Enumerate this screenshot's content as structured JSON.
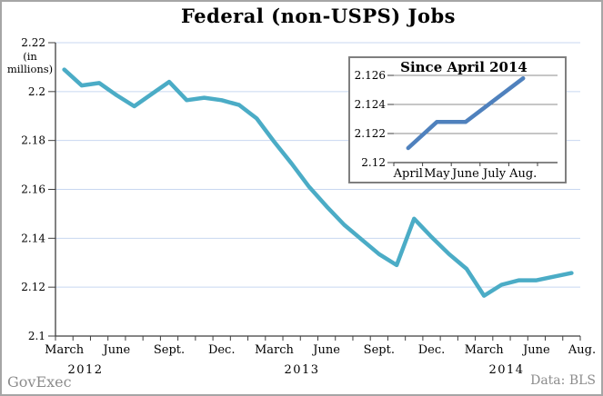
{
  "title": "Federal (non-USPS) Jobs",
  "credits": {
    "left": "GovExec",
    "right": "Data: BLS"
  },
  "colors": {
    "main_line": "#4BACC6",
    "inset_line": "#4F81BD",
    "main_gridline": "#C8D7F0",
    "inset_gridline": "#8C8C8C",
    "axis": "#3F3F3F",
    "muted_text": "#8C8C8C",
    "frame_border": "#A6A6A6",
    "inset_border": "#7F7F7F"
  },
  "chart_data": [
    {
      "type": "line",
      "title": "Federal (non-USPS) Jobs",
      "ylabel": "(in millions)",
      "xlabel": "",
      "ylim": [
        2.1,
        2.22
      ],
      "ytick_step": 0.02,
      "grid": true,
      "line_color": "#4BACC6",
      "x": [
        "Mar 2012",
        "Apr 2012",
        "May 2012",
        "Jun 2012",
        "Jul 2012",
        "Aug 2012",
        "Sep 2012",
        "Oct 2012",
        "Nov 2012",
        "Dec 2012",
        "Jan 2013",
        "Feb 2013",
        "Mar 2013",
        "Apr 2013",
        "May 2013",
        "Jun 2013",
        "Jul 2013",
        "Aug 2013",
        "Sep 2013",
        "Oct 2013",
        "Nov 2013",
        "Dec 2013",
        "Jan 2014",
        "Feb 2014",
        "Mar 2014",
        "Apr 2014",
        "May 2014",
        "Jun 2014",
        "Jul 2014",
        "Aug 2014"
      ],
      "values": [
        2.209,
        2.2025,
        2.2035,
        2.1985,
        2.194,
        2.199,
        2.204,
        2.1965,
        2.1975,
        2.1965,
        2.1945,
        2.189,
        2.1795,
        2.1705,
        2.161,
        2.153,
        2.1455,
        2.1395,
        2.1335,
        2.129,
        2.148,
        2.1405,
        2.1335,
        2.1275,
        2.1165,
        2.121,
        2.1228,
        2.1228,
        2.1243,
        2.1258
      ],
      "x_tick_labels": [
        {
          "m": 0,
          "t": "March"
        },
        {
          "m": 3,
          "t": "June"
        },
        {
          "m": 6,
          "t": "Sept."
        },
        {
          "m": 9,
          "t": "Dec."
        },
        {
          "m": 12,
          "t": "March"
        },
        {
          "m": 15,
          "t": "June"
        },
        {
          "m": 18,
          "t": "Sept."
        },
        {
          "m": 21,
          "t": "Dec."
        },
        {
          "m": 24,
          "t": "March"
        },
        {
          "m": 27,
          "t": "June"
        },
        {
          "m": 29,
          "t": "Aug."
        }
      ],
      "year_labels": [
        "2012",
        "2013",
        "2014"
      ]
    },
    {
      "type": "line",
      "title": "Since April 2014",
      "ylim": [
        2.12,
        2.126
      ],
      "ytick_step": 0.002,
      "grid": true,
      "line_color": "#4F81BD",
      "x": [
        "April",
        "May",
        "June",
        "July",
        "Aug."
      ],
      "values": [
        2.121,
        2.1228,
        2.1228,
        2.1243,
        2.1258
      ]
    }
  ]
}
